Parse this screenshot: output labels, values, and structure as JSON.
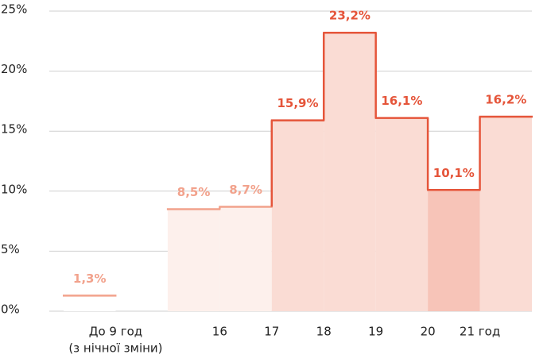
{
  "chart_data": {
    "type": "histogram",
    "bins": [
      0,
      1,
      2,
      3,
      4,
      5,
      6,
      7,
      8,
      9
    ],
    "values": [
      1.3,
      null,
      8.5,
      8.7,
      15.9,
      23.2,
      16.1,
      10.1,
      16.2
    ],
    "value_labels": [
      "1,3%",
      null,
      "8,5%",
      "8,7%",
      "15,9%",
      "23,2%",
      "16,1%",
      "10,1%",
      "16,2%"
    ],
    "stroke_colors": [
      "#f2a28c",
      null,
      "#f2a28c",
      "#f2a28c",
      "#e5553a",
      "#e5553a",
      "#e5553a",
      "#e5553a",
      "#e5553a"
    ],
    "fill_colors": [
      "#ffffff",
      null,
      "#fdf0ec",
      "#fdf0ec",
      "#fadcd4",
      "#fadcd4",
      "#fadcd4",
      "#f7c4b8",
      "#fadcd4"
    ],
    "xlim": [
      0,
      9
    ],
    "xticks": [
      {
        "value": 1,
        "label": [
          "До 9 год",
          "(з нічної зміни)"
        ]
      },
      {
        "value": 3,
        "label": "16"
      },
      {
        "value": 4,
        "label": "17"
      },
      {
        "value": 5,
        "label": "18"
      },
      {
        "value": 6,
        "label": "19"
      },
      {
        "value": 7,
        "label": "20"
      },
      {
        "value": 8,
        "label": "21 год"
      }
    ],
    "ylim": [
      0,
      25
    ],
    "yticks": [
      {
        "value": 0,
        "label": "0%"
      },
      {
        "value": 5,
        "label": "5%"
      },
      {
        "value": 10,
        "label": "10%"
      },
      {
        "value": 15,
        "label": "15%"
      },
      {
        "value": 20,
        "label": "20%"
      },
      {
        "value": 25,
        "label": "25%"
      }
    ],
    "grid": true
  }
}
